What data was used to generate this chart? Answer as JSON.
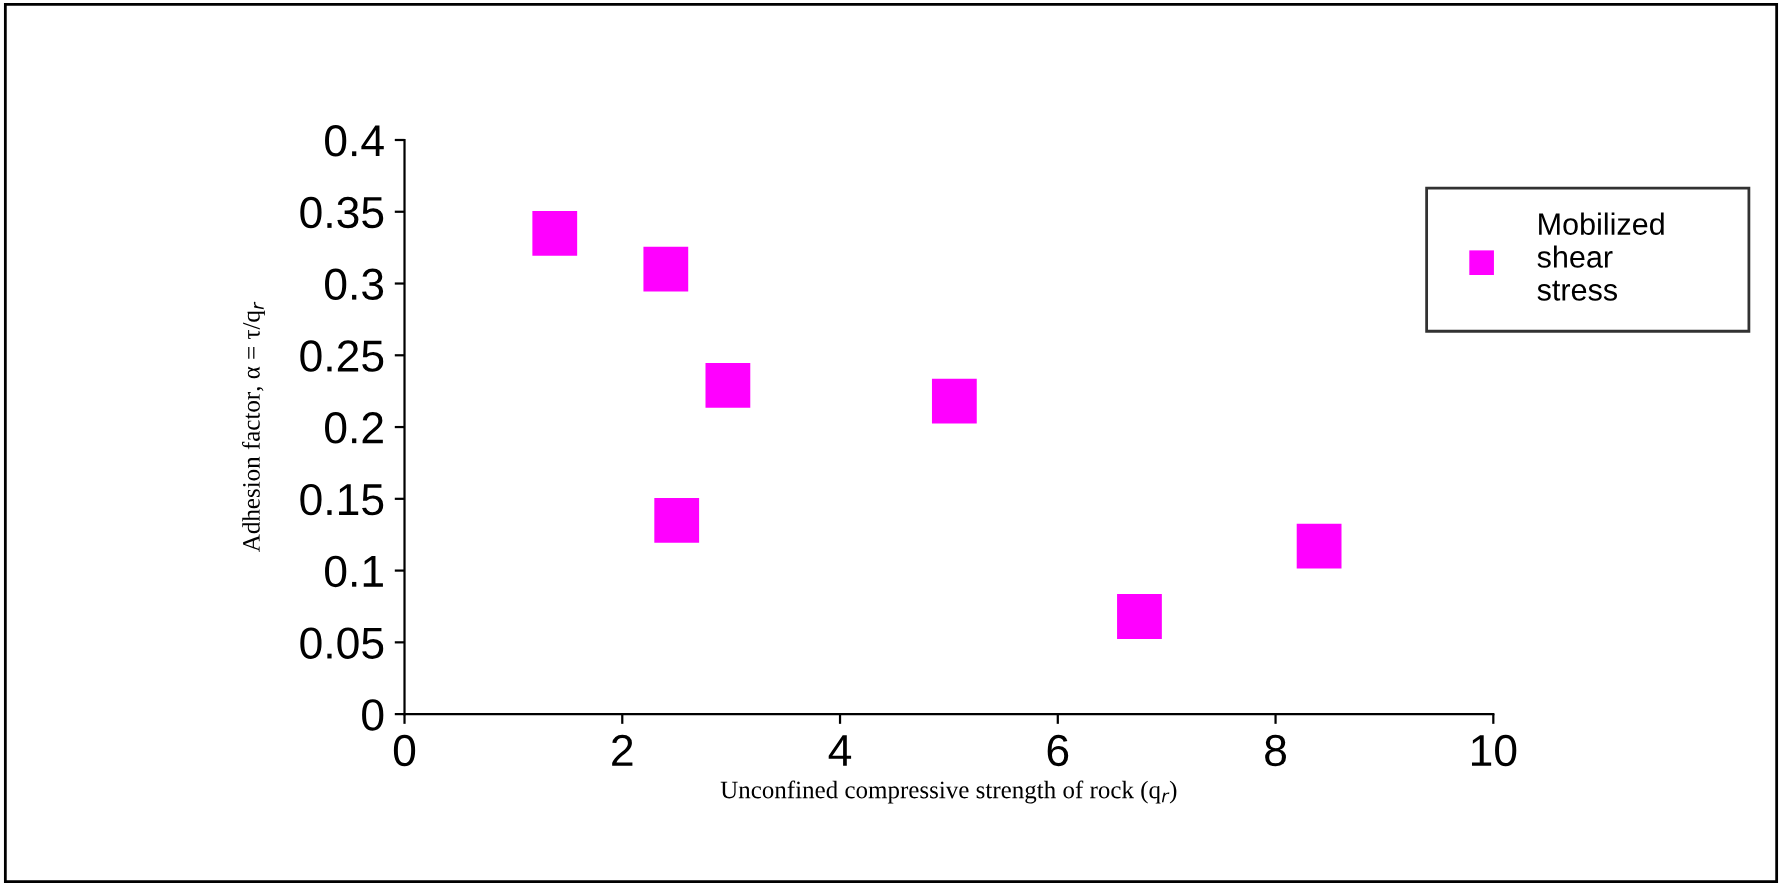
{
  "chart_data": {
    "type": "scatter",
    "xlabel": "Unconfined compressive strength of rock (q$_{r}$)",
    "ylabel": "Adhesion factor, α = τ/q$_{r}$",
    "x": [
      1.38,
      2.4,
      2.5,
      2.97,
      5.05,
      6.75,
      8.4
    ],
    "series": [
      {
        "name": "Mobilized shear stress",
        "color": "#ff00ff",
        "values": [
          0.335,
          0.31,
          0.135,
          0.229,
          0.218,
          0.068,
          0.117
        ]
      }
    ],
    "xlim": [
      0,
      10
    ],
    "ylim": [
      0,
      0.4
    ],
    "xticks": [
      0,
      2,
      4,
      6,
      8,
      10
    ],
    "yticks": [
      0,
      0.05,
      0.1,
      0.15,
      0.2,
      0.25,
      0.3,
      0.35,
      0.4
    ],
    "marker": "square",
    "legend": "right",
    "grid": false
  }
}
